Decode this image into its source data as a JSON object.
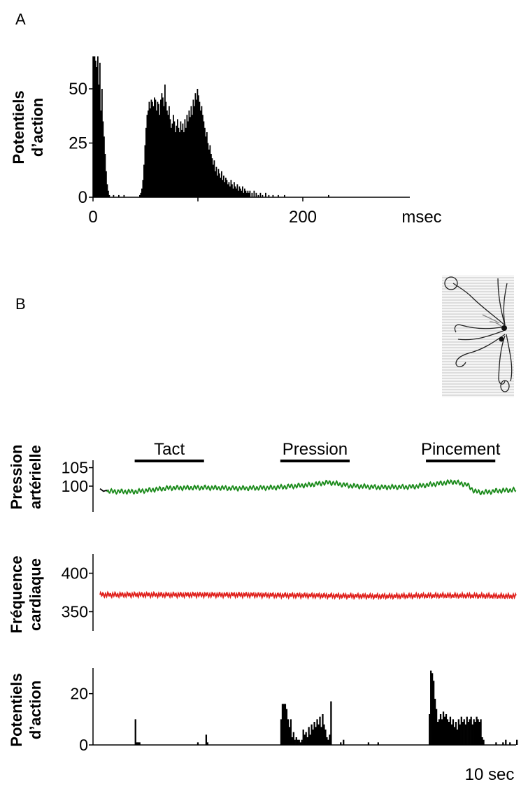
{
  "panel_labels": {
    "a": "A",
    "b": "B"
  },
  "colors": {
    "ink": "#000000",
    "bp": "#1a8a1a",
    "hr": "#e0201c"
  },
  "chart_data": [
    {
      "type": "bar",
      "id": "histogram-A",
      "ylabel": [
        "Potentiels",
        "d’action"
      ],
      "xunit": "msec",
      "xlim": [
        0,
        300
      ],
      "ylim": [
        0,
        65
      ],
      "xticks": [
        0,
        200
      ],
      "yticks": [
        0,
        25,
        50
      ],
      "bin_ms": 1,
      "bins": [
        [
          1,
          65
        ],
        [
          2,
          65
        ],
        [
          3,
          63
        ],
        [
          4,
          60
        ],
        [
          5,
          65
        ],
        [
          6,
          52
        ],
        [
          7,
          62
        ],
        [
          8,
          40
        ],
        [
          9,
          50
        ],
        [
          10,
          35
        ],
        [
          11,
          28
        ],
        [
          12,
          20
        ],
        [
          13,
          12
        ],
        [
          14,
          6
        ],
        [
          15,
          3
        ],
        [
          16,
          1
        ],
        [
          20,
          1
        ],
        [
          25,
          1
        ],
        [
          30,
          1
        ],
        [
          45,
          1
        ],
        [
          46,
          2
        ],
        [
          47,
          4
        ],
        [
          48,
          8
        ],
        [
          49,
          15
        ],
        [
          50,
          24
        ],
        [
          51,
          32
        ],
        [
          52,
          38
        ],
        [
          53,
          40
        ],
        [
          54,
          44
        ],
        [
          55,
          41
        ],
        [
          56,
          45
        ],
        [
          57,
          44
        ],
        [
          58,
          42
        ],
        [
          59,
          46
        ],
        [
          60,
          45
        ],
        [
          61,
          40
        ],
        [
          62,
          44
        ],
        [
          63,
          43
        ],
        [
          64,
          38
        ],
        [
          65,
          45
        ],
        [
          66,
          48
        ],
        [
          67,
          46
        ],
        [
          68,
          42
        ],
        [
          69,
          52
        ],
        [
          70,
          44
        ],
        [
          71,
          40
        ],
        [
          72,
          38
        ],
        [
          73,
          42
        ],
        [
          74,
          36
        ],
        [
          75,
          32
        ],
        [
          76,
          34
        ],
        [
          77,
          38
        ],
        [
          78,
          35
        ],
        [
          79,
          30
        ],
        [
          80,
          33
        ],
        [
          81,
          36
        ],
        [
          82,
          32
        ],
        [
          83,
          30
        ],
        [
          84,
          35
        ],
        [
          85,
          31
        ],
        [
          86,
          34
        ],
        [
          87,
          30
        ],
        [
          88,
          36
        ],
        [
          89,
          32
        ],
        [
          90,
          38
        ],
        [
          91,
          35
        ],
        [
          92,
          40
        ],
        [
          93,
          37
        ],
        [
          94,
          42
        ],
        [
          95,
          38
        ],
        [
          96,
          45
        ],
        [
          97,
          42
        ],
        [
          98,
          48
        ],
        [
          99,
          45
        ],
        [
          100,
          50
        ],
        [
          101,
          47
        ],
        [
          102,
          44
        ],
        [
          103,
          40
        ],
        [
          104,
          42
        ],
        [
          105,
          38
        ],
        [
          106,
          35
        ],
        [
          107,
          32
        ],
        [
          108,
          28
        ],
        [
          109,
          30
        ],
        [
          110,
          25
        ],
        [
          111,
          22
        ],
        [
          112,
          24
        ],
        [
          113,
          20
        ],
        [
          114,
          18
        ],
        [
          115,
          15
        ],
        [
          116,
          17
        ],
        [
          117,
          12
        ],
        [
          118,
          14
        ],
        [
          119,
          10
        ],
        [
          120,
          13
        ],
        [
          121,
          11
        ],
        [
          122,
          9
        ],
        [
          123,
          12
        ],
        [
          124,
          8
        ],
        [
          125,
          10
        ],
        [
          126,
          7
        ],
        [
          127,
          9
        ],
        [
          128,
          8
        ],
        [
          129,
          6
        ],
        [
          130,
          7
        ],
        [
          131,
          5
        ],
        [
          132,
          8
        ],
        [
          133,
          6
        ],
        [
          134,
          4
        ],
        [
          135,
          7
        ],
        [
          136,
          5
        ],
        [
          137,
          4
        ],
        [
          138,
          6
        ],
        [
          139,
          3
        ],
        [
          140,
          5
        ],
        [
          141,
          4
        ],
        [
          142,
          3
        ],
        [
          143,
          5
        ],
        [
          144,
          2
        ],
        [
          145,
          4
        ],
        [
          146,
          3
        ],
        [
          147,
          2
        ],
        [
          148,
          3
        ],
        [
          149,
          2
        ],
        [
          150,
          3
        ],
        [
          152,
          2
        ],
        [
          154,
          3
        ],
        [
          156,
          2
        ],
        [
          158,
          1
        ],
        [
          160,
          2
        ],
        [
          162,
          1
        ],
        [
          165,
          2
        ],
        [
          168,
          1
        ],
        [
          172,
          1
        ],
        [
          177,
          1
        ],
        [
          183,
          1
        ],
        [
          225,
          1
        ]
      ]
    },
    {
      "type": "line",
      "id": "blood-pressure",
      "ylabel": [
        "Pression",
        "artérielle"
      ],
      "ylim": [
        93,
        107
      ],
      "yticks": [
        100,
        105
      ],
      "xlim": [
        0,
        60
      ],
      "stimuli": [
        {
          "label": "Tact",
          "start": 5,
          "end": 15
        },
        {
          "label": "Pression",
          "start": 26,
          "end": 36
        },
        {
          "label": "Pincement",
          "start": 47,
          "end": 57
        }
      ],
      "x": [
        1,
        5,
        10,
        15,
        20,
        25,
        30,
        33,
        36,
        40,
        45,
        48,
        51,
        53,
        54,
        55,
        56,
        57,
        60
      ],
      "y": [
        98.6,
        98.5,
        99.5,
        99.6,
        99.4,
        99.6,
        100.3,
        101.0,
        100.1,
        99.7,
        99.8,
        100.5,
        101.2,
        100.3,
        98.6,
        98.3,
        98.4,
        98.7,
        99.0
      ],
      "ripple_amplitude": 0.5,
      "ripple_period": 0.5
    },
    {
      "type": "line",
      "id": "heart-rate",
      "ylabel": [
        "Fréquence",
        "cardiaque"
      ],
      "ylim": [
        325,
        425
      ],
      "yticks": [
        350,
        400
      ],
      "xlim": [
        0,
        60
      ],
      "x": [
        0,
        10,
        20,
        30,
        40,
        50,
        60
      ],
      "y": [
        372,
        372,
        372,
        371,
        370,
        371,
        370
      ],
      "ripple_amplitude": 2.5,
      "ripple_period": 0.35
    },
    {
      "type": "bar",
      "id": "firing-rate",
      "ylabel": [
        "Potentiels",
        "d’action"
      ],
      "ylim": [
        0,
        30
      ],
      "yticks": [
        0,
        20
      ],
      "xlim": [
        0,
        60
      ],
      "xunit": "10 sec",
      "bin_s": 0.2,
      "bins": [
        [
          5.0,
          10
        ],
        [
          5.2,
          1
        ],
        [
          5.4,
          1
        ],
        [
          5.6,
          1
        ],
        [
          14.0,
          1
        ],
        [
          15.2,
          4
        ],
        [
          15.4,
          1
        ],
        [
          26.0,
          10
        ],
        [
          26.2,
          16
        ],
        [
          26.4,
          16
        ],
        [
          26.6,
          16
        ],
        [
          26.8,
          14
        ],
        [
          27.0,
          10
        ],
        [
          27.2,
          7
        ],
        [
          27.4,
          10
        ],
        [
          27.6,
          3
        ],
        [
          27.8,
          5
        ],
        [
          28.0,
          2
        ],
        [
          28.2,
          3
        ],
        [
          28.4,
          2
        ],
        [
          28.6,
          2
        ],
        [
          28.8,
          1
        ],
        [
          29.0,
          2
        ],
        [
          29.2,
          6
        ],
        [
          29.4,
          4
        ],
        [
          29.6,
          5
        ],
        [
          29.8,
          3
        ],
        [
          30.0,
          7
        ],
        [
          30.2,
          4
        ],
        [
          30.4,
          8
        ],
        [
          30.6,
          6
        ],
        [
          30.8,
          9
        ],
        [
          31.0,
          7
        ],
        [
          31.2,
          10
        ],
        [
          31.4,
          8
        ],
        [
          31.6,
          11
        ],
        [
          31.8,
          7
        ],
        [
          32.0,
          12
        ],
        [
          32.2,
          8
        ],
        [
          32.4,
          6
        ],
        [
          32.6,
          3
        ],
        [
          32.8,
          2
        ],
        [
          33.0,
          4
        ],
        [
          33.2,
          17
        ],
        [
          34.6,
          1
        ],
        [
          35.0,
          2
        ],
        [
          38.6,
          1
        ],
        [
          40.0,
          1
        ],
        [
          47.4,
          12
        ],
        [
          47.6,
          29
        ],
        [
          47.8,
          28
        ],
        [
          48.0,
          25
        ],
        [
          48.2,
          18
        ],
        [
          48.4,
          14
        ],
        [
          48.6,
          9
        ],
        [
          48.8,
          10
        ],
        [
          49.0,
          12
        ],
        [
          49.2,
          10
        ],
        [
          49.4,
          13
        ],
        [
          49.6,
          11
        ],
        [
          49.8,
          12
        ],
        [
          50.0,
          10
        ],
        [
          50.2,
          9
        ],
        [
          50.4,
          11
        ],
        [
          50.6,
          8
        ],
        [
          50.8,
          10
        ],
        [
          51.0,
          7
        ],
        [
          51.2,
          9
        ],
        [
          51.4,
          6
        ],
        [
          51.6,
          10
        ],
        [
          51.8,
          8
        ],
        [
          52.0,
          11
        ],
        [
          52.2,
          9
        ],
        [
          52.4,
          10
        ],
        [
          52.6,
          8
        ],
        [
          52.8,
          11
        ],
        [
          53.0,
          9
        ],
        [
          53.2,
          10
        ],
        [
          53.4,
          11
        ],
        [
          53.6,
          8
        ],
        [
          53.8,
          10
        ],
        [
          54.0,
          9
        ],
        [
          54.2,
          11
        ],
        [
          54.4,
          10
        ],
        [
          54.6,
          9
        ],
        [
          54.8,
          10
        ],
        [
          55.0,
          3
        ],
        [
          55.2,
          2
        ],
        [
          57.0,
          1
        ],
        [
          58.0,
          1
        ],
        [
          58.4,
          2
        ],
        [
          59.0,
          1
        ],
        [
          60.0,
          2
        ]
      ]
    }
  ]
}
